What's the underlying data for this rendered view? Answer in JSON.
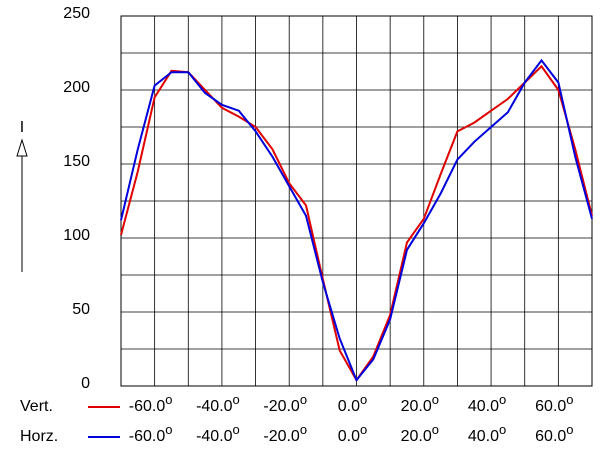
{
  "chart_data": {
    "type": "line",
    "y_axis_label": "I",
    "degree_symbol": "o",
    "xlim": [
      -70,
      70
    ],
    "xticks": [
      {
        "value": -60,
        "label": "-60.0"
      },
      {
        "value": -40,
        "label": "-40.0"
      },
      {
        "value": -20,
        "label": "-20.0"
      },
      {
        "value": 0,
        "label": "0.0"
      },
      {
        "value": 20,
        "label": "20.0"
      },
      {
        "value": 40,
        "label": "40.0"
      },
      {
        "value": 60,
        "label": "60.0"
      }
    ],
    "x_minor_ticks": [
      -50,
      -30,
      -10,
      10,
      30,
      50
    ],
    "ylim": [
      0,
      250
    ],
    "yticks": [
      0,
      50,
      100,
      150,
      200,
      250
    ],
    "y_minor_ticks": [
      25,
      75,
      125,
      175,
      225
    ],
    "grid": true,
    "x": [
      -70,
      -65,
      -60,
      -55,
      -50,
      -45,
      -40,
      -35,
      -30,
      -25,
      -20,
      -15,
      -10,
      -5,
      0,
      5,
      10,
      15,
      20,
      25,
      30,
      35,
      40,
      45,
      50,
      55,
      60,
      65,
      70
    ],
    "series": [
      {
        "name": "Vert.",
        "color": "#e00000",
        "values": [
          102,
          145,
          195,
          213,
          212,
          200,
          188,
          182,
          175,
          160,
          137,
          122,
          72,
          24,
          4,
          20,
          48,
          97,
          113,
          143,
          172,
          178,
          186,
          194,
          205,
          216,
          200,
          160,
          115
        ]
      },
      {
        "name": "Horz.",
        "color": "#0000dd",
        "values": [
          112,
          160,
          203,
          212,
          212,
          198,
          190,
          186,
          172,
          155,
          135,
          115,
          70,
          32,
          4,
          18,
          45,
          92,
          110,
          130,
          153,
          165,
          175,
          185,
          205,
          220,
          205,
          155,
          113
        ]
      }
    ]
  }
}
